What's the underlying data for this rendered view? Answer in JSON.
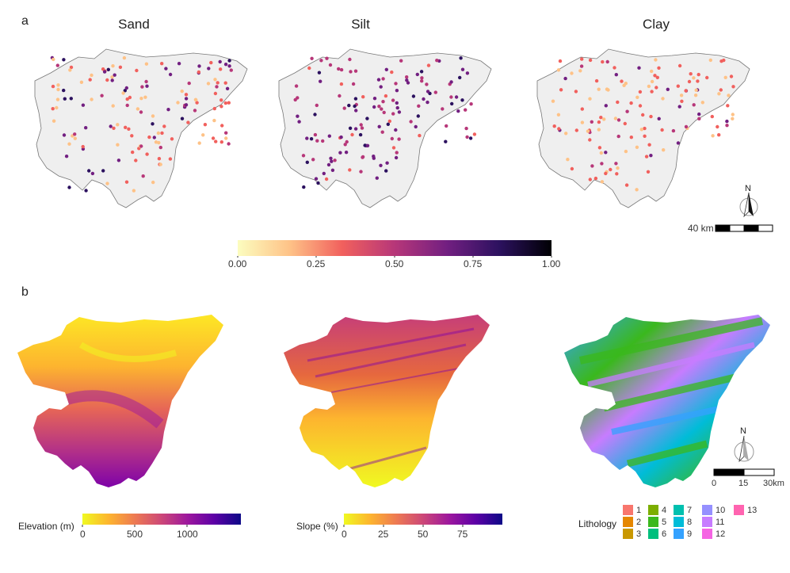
{
  "panel_a": {
    "letter": "a",
    "titles": [
      "Sand",
      "Silt",
      "Clay"
    ],
    "colorbar": {
      "ticks": [
        "0.00",
        "0.25",
        "0.50",
        "0.75",
        "1.00"
      ],
      "colors": [
        "#fcfdbf",
        "#fec287",
        "#f1605d",
        "#b73779",
        "#721f81",
        "#2c115f",
        "#000004"
      ]
    },
    "scalebar": {
      "label": "40 km",
      "north": "N"
    }
  },
  "panel_b": {
    "letter": "b",
    "elevation": {
      "title": "Elevation (m)",
      "ticks": [
        "0",
        "500",
        "1000"
      ],
      "colors": [
        "#f0f921",
        "#fdb42f",
        "#ed7953",
        "#cc4778",
        "#9c179e",
        "#5c01a6",
        "#0d0887"
      ]
    },
    "slope": {
      "title": "Slope (%)",
      "ticks": [
        "0",
        "25",
        "50",
        "75"
      ],
      "colors": [
        "#f0f921",
        "#fdb42f",
        "#ed7953",
        "#cc4778",
        "#9c179e",
        "#5c01a6",
        "#0d0887"
      ]
    },
    "lithology": {
      "title": "Lithology",
      "classes": [
        {
          "label": "1",
          "color": "#f8766d"
        },
        {
          "label": "2",
          "color": "#e58700"
        },
        {
          "label": "3",
          "color": "#c99800"
        },
        {
          "label": "4",
          "color": "#7cae00"
        },
        {
          "label": "5",
          "color": "#3ab81d"
        },
        {
          "label": "6",
          "color": "#00bf7d"
        },
        {
          "label": "7",
          "color": "#00c0af"
        },
        {
          "label": "8",
          "color": "#00bcd8"
        },
        {
          "label": "9",
          "color": "#35a2ff"
        },
        {
          "label": "10",
          "color": "#9590ff"
        },
        {
          "label": "11",
          "color": "#c77cff"
        },
        {
          "label": "12",
          "color": "#f564e3"
        },
        {
          "label": "13",
          "color": "#ff64b0"
        }
      ]
    },
    "scalebar": {
      "ticks": [
        "0",
        "15",
        "30km"
      ],
      "north": "N"
    }
  }
}
